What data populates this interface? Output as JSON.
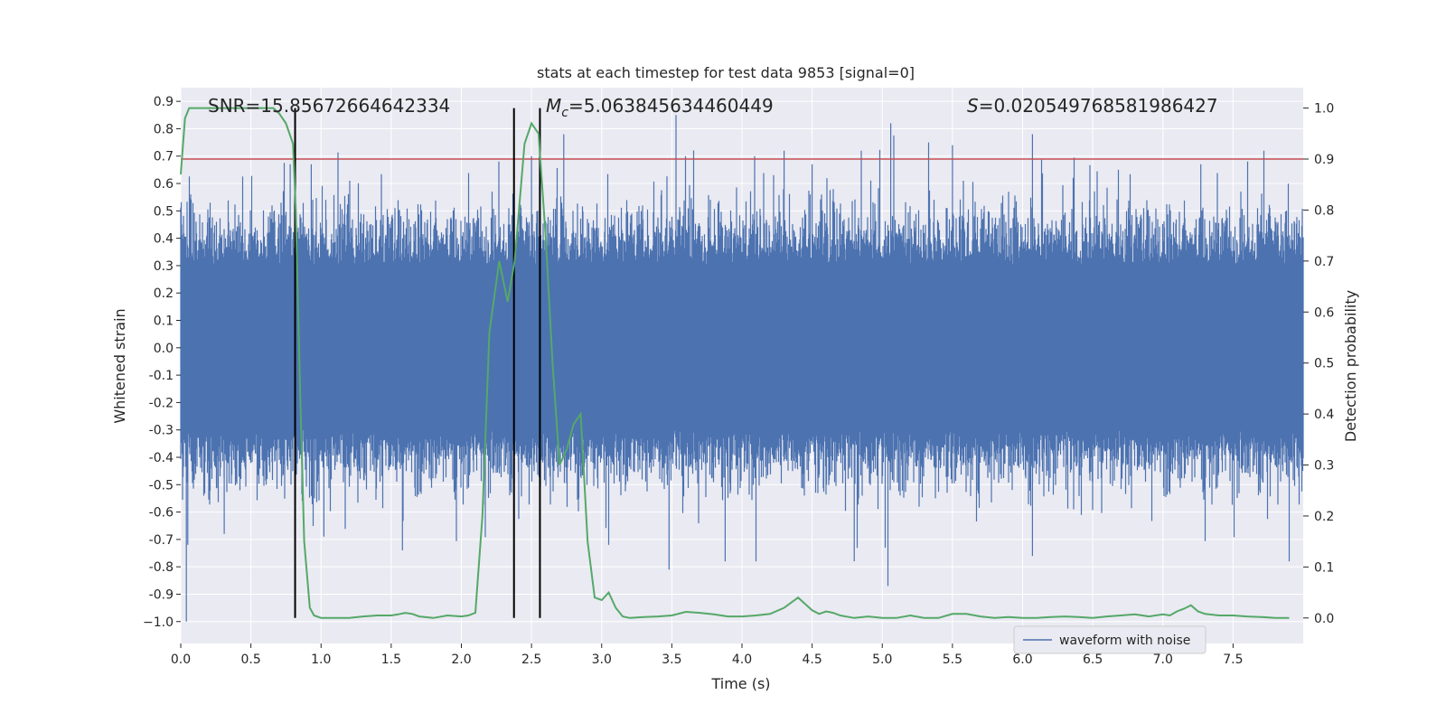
{
  "chart_data": {
    "type": "line",
    "title": "stats at each timestep for test data 9853 [signal=0]",
    "xlabel": "Time (s)",
    "ylabel": "Whitened strain",
    "y2label": "Detection probability",
    "xlim": [
      0,
      8
    ],
    "ylim": [
      -1.08,
      0.95
    ],
    "y2lim": [
      -0.05,
      1.04
    ],
    "x_ticks": [
      "0.0",
      "0.5",
      "1.0",
      "1.5",
      "2.0",
      "2.5",
      "3.0",
      "3.5",
      "4.0",
      "4.5",
      "5.0",
      "5.5",
      "6.0",
      "6.5",
      "7.0",
      "7.5"
    ],
    "y_ticks": [
      "0.9",
      "0.8",
      "0.7",
      "0.6",
      "0.5",
      "0.4",
      "0.3",
      "0.2",
      "0.1",
      "0.0",
      "-0.1",
      "-0.2",
      "-0.3",
      "-0.4",
      "-0.5",
      "-0.6",
      "-0.7",
      "-0.8",
      "-0.9",
      "−1.0"
    ],
    "y2_ticks": [
      "1.0",
      "0.9",
      "0.8",
      "0.7",
      "0.6",
      "0.5",
      "0.4",
      "0.3",
      "0.2",
      "0.1",
      "0.0"
    ],
    "grid": true,
    "legend_placement": "lower-right",
    "annotations": {
      "snr": "SNR=15.85672664642334",
      "mc": "=5.063845634460449",
      "mc_symbol": "M",
      "mc_sub": "c",
      "s": "=0.020549768581986427",
      "s_symbol": "S"
    },
    "series": [
      {
        "name": "waveform with noise",
        "color": "#4c72b0",
        "type": "noise",
        "note_band": [
          -0.45,
          0.45
        ],
        "peaks": [
          {
            "x": 0.04,
            "y": -1.0
          },
          {
            "x": 0.05,
            "y": -0.72
          },
          {
            "x": 0.31,
            "y": -0.68
          },
          {
            "x": 0.78,
            "y": 0.67
          },
          {
            "x": 0.93,
            "y": 0.67
          },
          {
            "x": 1.02,
            "y": -0.69
          },
          {
            "x": 1.58,
            "y": -0.74
          },
          {
            "x": 2.5,
            "y": 0.7
          },
          {
            "x": 2.73,
            "y": 0.78
          },
          {
            "x": 3.05,
            "y": -0.72
          },
          {
            "x": 3.48,
            "y": -0.81
          },
          {
            "x": 3.53,
            "y": 0.85
          },
          {
            "x": 3.88,
            "y": -0.78
          },
          {
            "x": 4.1,
            "y": -0.78
          },
          {
            "x": 4.3,
            "y": 0.72
          },
          {
            "x": 4.5,
            "y": 0.67
          },
          {
            "x": 4.8,
            "y": -0.78
          },
          {
            "x": 4.85,
            "y": 0.72
          },
          {
            "x": 5.04,
            "y": -0.87
          },
          {
            "x": 5.06,
            "y": 0.82
          },
          {
            "x": 5.33,
            "y": 0.75
          },
          {
            "x": 5.5,
            "y": 0.74
          },
          {
            "x": 6.07,
            "y": -0.76
          },
          {
            "x": 6.07,
            "y": 0.78
          },
          {
            "x": 7.27,
            "y": 0.67
          },
          {
            "x": 7.72,
            "y": 0.72
          },
          {
            "x": 7.9,
            "y": -0.78
          }
        ]
      },
      {
        "name": "",
        "color": "#55a868",
        "axis": "right",
        "x": [
          0.0,
          0.03,
          0.06,
          0.12,
          0.2,
          0.3,
          0.4,
          0.5,
          0.6,
          0.66,
          0.7,
          0.75,
          0.8,
          0.82,
          0.85,
          0.88,
          0.92,
          0.95,
          1.0,
          1.05,
          1.1,
          1.2,
          1.3,
          1.4,
          1.5,
          1.55,
          1.6,
          1.65,
          1.7,
          1.8,
          1.9,
          2.0,
          2.05,
          2.1,
          2.15,
          2.2,
          2.27,
          2.33,
          2.38,
          2.45,
          2.5,
          2.55,
          2.6,
          2.65,
          2.7,
          2.75,
          2.8,
          2.85,
          2.9,
          2.95,
          3.0,
          3.05,
          3.1,
          3.15,
          3.2,
          3.3,
          3.4,
          3.5,
          3.6,
          3.7,
          3.8,
          3.9,
          4.0,
          4.1,
          4.2,
          4.3,
          4.4,
          4.5,
          4.55,
          4.6,
          4.65,
          4.7,
          4.8,
          4.9,
          5.0,
          5.1,
          5.2,
          5.3,
          5.4,
          5.5,
          5.6,
          5.7,
          5.8,
          5.9,
          6.0,
          6.1,
          6.2,
          6.3,
          6.4,
          6.5,
          6.6,
          6.7,
          6.8,
          6.9,
          7.0,
          7.05,
          7.1,
          7.15,
          7.2,
          7.25,
          7.3,
          7.4,
          7.5,
          7.6,
          7.7,
          7.8,
          7.9
        ],
        "y": [
          0.87,
          0.98,
          1.0,
          1.0,
          1.0,
          1.0,
          1.0,
          1.0,
          1.0,
          1.0,
          0.99,
          0.97,
          0.93,
          0.8,
          0.45,
          0.15,
          0.02,
          0.005,
          0.0,
          0.0,
          0.0,
          0.0,
          0.003,
          0.005,
          0.005,
          0.007,
          0.01,
          0.008,
          0.003,
          0.0,
          0.005,
          0.003,
          0.005,
          0.01,
          0.2,
          0.56,
          0.7,
          0.62,
          0.7,
          0.93,
          0.97,
          0.95,
          0.75,
          0.5,
          0.3,
          0.33,
          0.38,
          0.4,
          0.15,
          0.04,
          0.035,
          0.05,
          0.02,
          0.003,
          0.0,
          0.002,
          0.003,
          0.005,
          0.012,
          0.01,
          0.007,
          0.003,
          0.003,
          0.005,
          0.008,
          0.02,
          0.04,
          0.015,
          0.008,
          0.013,
          0.01,
          0.005,
          0.0,
          0.003,
          0.0,
          0.0,
          0.005,
          0.0,
          0.0,
          0.008,
          0.008,
          0.003,
          0.0,
          0.002,
          0.0,
          0.0,
          0.002,
          0.003,
          0.002,
          0.0,
          0.003,
          0.005,
          0.007,
          0.003,
          0.007,
          0.005,
          0.013,
          0.018,
          0.025,
          0.013,
          0.008,
          0.005,
          0.005,
          0.003,
          0.002,
          0.0,
          0.0
        ]
      }
    ],
    "hlines_right": [
      {
        "y": 0.9,
        "color": "#c44e52"
      }
    ],
    "vlines": [
      {
        "x": 0.815,
        "color": "#000000"
      },
      {
        "x": 2.375,
        "color": "#000000"
      },
      {
        "x": 2.56,
        "color": "#000000"
      }
    ]
  }
}
